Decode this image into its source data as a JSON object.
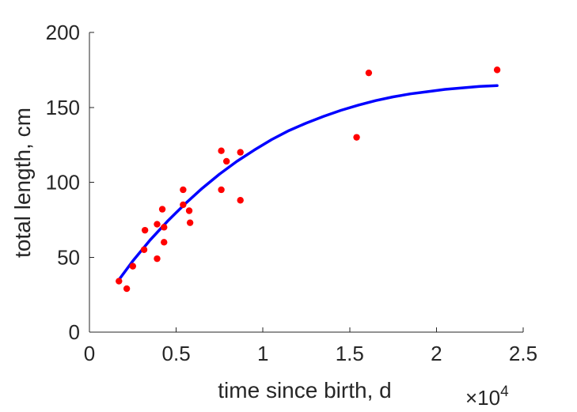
{
  "chart_data": {
    "type": "scatter",
    "xlabel": "time since birth, d",
    "ylabel": "total length, cm",
    "xlim": [
      0,
      25000
    ],
    "ylim": [
      0,
      200
    ],
    "x_ticks": [
      0,
      5000,
      10000,
      15000,
      20000,
      25000
    ],
    "x_tick_labels": [
      "0",
      "0.5",
      "1",
      "1.5",
      "2",
      "2.5"
    ],
    "y_ticks": [
      0,
      50,
      100,
      150,
      200
    ],
    "y_tick_labels": [
      "0",
      "50",
      "100",
      "150",
      "200"
    ],
    "x_exponent_prefix": "×10",
    "x_exponent": "4",
    "grid": false,
    "legend": "none",
    "series": [
      {
        "kind": "scatter",
        "color": "#ff0000",
        "points": [
          {
            "x": 1700,
            "y": 34
          },
          {
            "x": 2150,
            "y": 29
          },
          {
            "x": 2500,
            "y": 44
          },
          {
            "x": 3200,
            "y": 68
          },
          {
            "x": 3150,
            "y": 55
          },
          {
            "x": 3900,
            "y": 72
          },
          {
            "x": 3900,
            "y": 49
          },
          {
            "x": 4200,
            "y": 82
          },
          {
            "x": 4300,
            "y": 70
          },
          {
            "x": 4300,
            "y": 60
          },
          {
            "x": 5400,
            "y": 95
          },
          {
            "x": 5400,
            "y": 85
          },
          {
            "x": 5750,
            "y": 81
          },
          {
            "x": 5800,
            "y": 73
          },
          {
            "x": 7600,
            "y": 121
          },
          {
            "x": 7600,
            "y": 95
          },
          {
            "x": 7900,
            "y": 114
          },
          {
            "x": 8700,
            "y": 120
          },
          {
            "x": 8700,
            "y": 88
          },
          {
            "x": 15400,
            "y": 130
          },
          {
            "x": 16100,
            "y": 173
          },
          {
            "x": 23500,
            "y": 175
          }
        ]
      },
      {
        "kind": "line",
        "color": "#0000ff",
        "points": [
          {
            "x": 1700,
            "y": 35
          },
          {
            "x": 2500,
            "y": 47.5
          },
          {
            "x": 3500,
            "y": 61.5
          },
          {
            "x": 4500,
            "y": 74
          },
          {
            "x": 5500,
            "y": 85.5
          },
          {
            "x": 6500,
            "y": 96
          },
          {
            "x": 7500,
            "y": 105.5
          },
          {
            "x": 8500,
            "y": 114
          },
          {
            "x": 9500,
            "y": 121.5
          },
          {
            "x": 10500,
            "y": 128.5
          },
          {
            "x": 11500,
            "y": 134.5
          },
          {
            "x": 12500,
            "y": 139.5
          },
          {
            "x": 13500,
            "y": 144
          },
          {
            "x": 14500,
            "y": 148
          },
          {
            "x": 15500,
            "y": 151.5
          },
          {
            "x": 16500,
            "y": 154.5
          },
          {
            "x": 17500,
            "y": 157
          },
          {
            "x": 18500,
            "y": 159
          },
          {
            "x": 19500,
            "y": 160.5
          },
          {
            "x": 20500,
            "y": 162
          },
          {
            "x": 21500,
            "y": 163
          },
          {
            "x": 22500,
            "y": 164
          },
          {
            "x": 23500,
            "y": 164.5
          }
        ]
      }
    ]
  }
}
